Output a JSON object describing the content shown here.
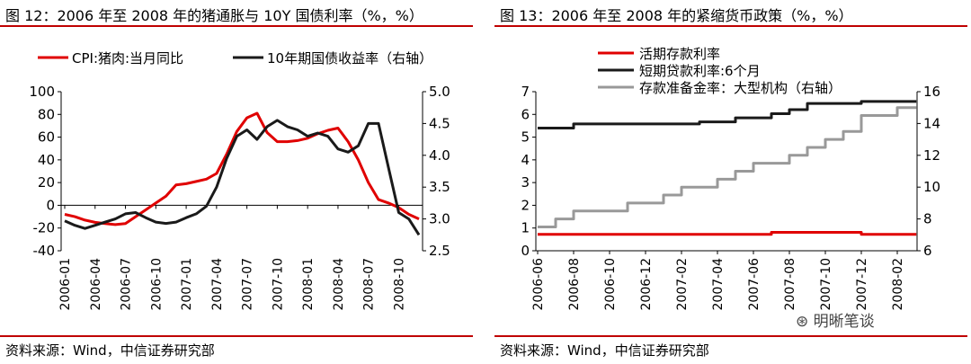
{
  "charts": [
    {
      "title": "图 12：2006 年至 2008 年的猪通胀与 10Y 国债利率（%，%）",
      "source": "资料来源：Wind，中信证券研究部"
    },
    {
      "title": "图 13：2006 年至 2008 年的紧缩货币政策（%，%）",
      "source": "资料来源：Wind，中信证券研究部"
    }
  ],
  "watermark": "明晰笔谈",
  "chart_data": [
    {
      "type": "line",
      "legend_position": "top",
      "grid": false,
      "x": [
        "2006-01",
        "2006-02",
        "2006-03",
        "2006-04",
        "2006-05",
        "2006-06",
        "2006-07",
        "2006-08",
        "2006-09",
        "2006-10",
        "2006-11",
        "2006-12",
        "2007-01",
        "2007-02",
        "2007-03",
        "2007-04",
        "2007-05",
        "2007-06",
        "2007-07",
        "2007-08",
        "2007-09",
        "2007-10",
        "2007-11",
        "2007-12",
        "2008-01",
        "2008-02",
        "2008-03",
        "2008-04",
        "2008-05",
        "2008-06",
        "2008-07",
        "2008-08",
        "2008-09",
        "2008-10",
        "2008-11",
        "2008-12"
      ],
      "x_ticks": [
        "2006-01",
        "2006-04",
        "2006-07",
        "2006-10",
        "2007-01",
        "2007-04",
        "2007-07",
        "2007-10",
        "2008-01",
        "2008-04",
        "2008-07",
        "2008-10"
      ],
      "ylim": [
        -40,
        100
      ],
      "yticks": [
        -40,
        -20,
        0,
        20,
        40,
        60,
        80,
        100
      ],
      "y2lim": [
        2.5,
        5.0
      ],
      "y2ticks": [
        "2.5",
        "3.0",
        "3.5",
        "4.0",
        "4.5",
        "5.0"
      ],
      "series": [
        {
          "name": "CPI:猪肉:当月同比",
          "axis": "left",
          "color": "#e00000",
          "values": [
            -8,
            -10,
            -13,
            -15,
            -16,
            -17,
            -16,
            -10,
            -4,
            2,
            8,
            18,
            19,
            21,
            23,
            28,
            45,
            65,
            77,
            81,
            64,
            56,
            56,
            57,
            59,
            63,
            66,
            68,
            56,
            40,
            20,
            5,
            2,
            -2,
            -8,
            -12
          ]
        },
        {
          "name": "10年期国债收益率（右轴）",
          "axis": "right",
          "color": "#1a1a1a",
          "values": [
            2.97,
            2.9,
            2.85,
            2.9,
            2.95,
            3.0,
            3.08,
            3.1,
            3.02,
            2.95,
            2.93,
            2.95,
            3.02,
            3.08,
            3.2,
            3.5,
            3.95,
            4.3,
            4.4,
            4.25,
            4.45,
            4.55,
            4.45,
            4.4,
            4.3,
            4.35,
            4.3,
            4.1,
            4.05,
            4.15,
            4.5,
            4.5,
            3.8,
            3.1,
            3.0,
            2.75
          ]
        }
      ]
    },
    {
      "type": "line",
      "legend_position": "top-left",
      "grid": false,
      "x": [
        "2006-06",
        "2006-07",
        "2006-08",
        "2006-09",
        "2006-10",
        "2006-11",
        "2006-12",
        "2007-01",
        "2007-02",
        "2007-03",
        "2007-04",
        "2007-05",
        "2007-06",
        "2007-07",
        "2007-08",
        "2007-09",
        "2007-10",
        "2007-11",
        "2007-12",
        "2008-01",
        "2008-02",
        "2008-03"
      ],
      "x_ticks": [
        "2006-06",
        "2006-08",
        "2006-10",
        "2006-12",
        "2007-02",
        "2007-04",
        "2007-06",
        "2007-08",
        "2007-10",
        "2007-12",
        "2008-02"
      ],
      "ylim": [
        0,
        7
      ],
      "yticks": [
        0,
        1,
        2,
        3,
        4,
        5,
        6,
        7
      ],
      "y2lim": [
        6,
        16
      ],
      "y2ticks": [
        6,
        8,
        10,
        12,
        14,
        16
      ],
      "series": [
        {
          "name": "活期存款利率",
          "axis": "left",
          "color": "#e00000",
          "values": [
            0.72,
            0.72,
            0.72,
            0.72,
            0.72,
            0.72,
            0.72,
            0.72,
            0.72,
            0.72,
            0.72,
            0.72,
            0.72,
            0.81,
            0.81,
            0.81,
            0.81,
            0.81,
            0.72,
            0.72,
            0.72,
            0.72
          ]
        },
        {
          "name": "短期贷款利率:6个月",
          "axis": "left",
          "color": "#1a1a1a",
          "values": [
            5.4,
            5.4,
            5.58,
            5.58,
            5.58,
            5.58,
            5.58,
            5.58,
            5.58,
            5.67,
            5.67,
            5.85,
            5.85,
            6.03,
            6.21,
            6.48,
            6.48,
            6.48,
            6.57,
            6.57,
            6.57,
            6.57
          ]
        },
        {
          "name": "存款准备金率：大型机构（右轴）",
          "axis": "right",
          "color": "#999999",
          "values": [
            7.5,
            8.0,
            8.5,
            8.5,
            8.5,
            9.0,
            9.0,
            9.5,
            10.0,
            10.0,
            10.5,
            11.0,
            11.5,
            11.5,
            12.0,
            12.5,
            13.0,
            13.5,
            14.5,
            14.5,
            15.0,
            15.0
          ]
        }
      ]
    }
  ]
}
